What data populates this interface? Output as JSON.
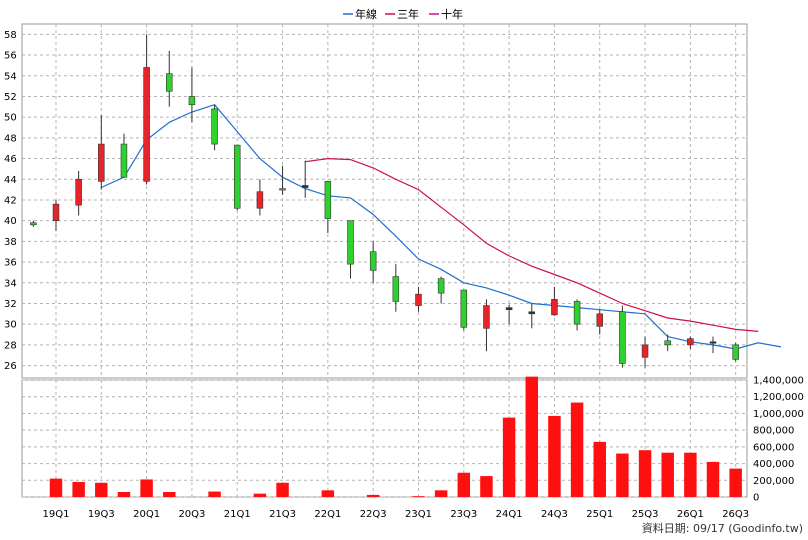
{
  "chart_data": {
    "type": "candlestick+bar",
    "legend": [
      {
        "label": "年線",
        "color": "#1f6fd1"
      },
      {
        "label": "三年",
        "color": "#cc1144"
      },
      {
        "label": "十年",
        "color": "#cc1188"
      }
    ],
    "price_axis": {
      "ticks": [
        "26",
        "28",
        "30",
        "32",
        "34",
        "36",
        "38",
        "40",
        "42",
        "44",
        "46",
        "48",
        "50",
        "52",
        "54",
        "56",
        "58"
      ],
      "ylim": [
        24.8,
        59
      ]
    },
    "volume_axis": {
      "ticks": [
        "0",
        "200,000",
        "400,000",
        "600,000",
        "800,000",
        "1,000,000",
        "1,200,000",
        "1,400,000"
      ],
      "ylim": [
        0,
        1400000
      ]
    },
    "x_tick_labels": [
      "19Q1",
      "19Q3",
      "20Q1",
      "20Q3",
      "21Q1",
      "21Q3",
      "22Q1",
      "22Q3",
      "23Q1",
      "23Q3",
      "24Q1",
      "24Q3",
      "25Q1",
      "25Q3",
      "26Q1",
      "26Q3"
    ],
    "candles": [
      {
        "o": 39.6,
        "h": 40.0,
        "l": 39.4,
        "c": 39.8,
        "color": "green"
      },
      {
        "o": 40.0,
        "h": 42.0,
        "l": 39.0,
        "c": 41.6,
        "color": "red"
      },
      {
        "o": 41.5,
        "h": 44.8,
        "l": 40.5,
        "c": 44.0,
        "color": "red"
      },
      {
        "o": 43.8,
        "h": 50.2,
        "l": 43.0,
        "c": 47.4,
        "color": "red"
      },
      {
        "o": 47.4,
        "h": 48.4,
        "l": 44.2,
        "c": 44.2,
        "color": "green"
      },
      {
        "o": 43.8,
        "h": 58.0,
        "l": 43.5,
        "c": 54.8,
        "color": "red"
      },
      {
        "o": 54.2,
        "h": 56.4,
        "l": 51.0,
        "c": 52.5,
        "color": "green"
      },
      {
        "o": 52.0,
        "h": 54.8,
        "l": 49.5,
        "c": 51.2,
        "color": "green"
      },
      {
        "o": 50.8,
        "h": 51.2,
        "l": 46.8,
        "c": 47.4,
        "color": "green"
      },
      {
        "o": 47.3,
        "h": 47.3,
        "l": 41.0,
        "c": 41.2,
        "color": "green"
      },
      {
        "o": 41.2,
        "h": 44.0,
        "l": 40.5,
        "c": 42.8,
        "color": "red"
      },
      {
        "o": 43.0,
        "h": 45.3,
        "l": 42.5,
        "c": 43.1,
        "color": "green"
      },
      {
        "o": 43.2,
        "h": 45.8,
        "l": 42.2,
        "c": 43.4,
        "color": "black"
      },
      {
        "o": 43.8,
        "h": 43.8,
        "l": 38.8,
        "c": 40.2,
        "color": "green"
      },
      {
        "o": 40.0,
        "h": 40.0,
        "l": 34.4,
        "c": 35.8,
        "color": "green"
      },
      {
        "o": 37.0,
        "h": 38.0,
        "l": 34.0,
        "c": 35.2,
        "color": "green"
      },
      {
        "o": 34.6,
        "h": 35.8,
        "l": 31.2,
        "c": 32.2,
        "color": "green"
      },
      {
        "o": 31.8,
        "h": 33.6,
        "l": 31.2,
        "c": 32.9,
        "color": "red"
      },
      {
        "o": 34.4,
        "h": 34.6,
        "l": 32.0,
        "c": 33.0,
        "color": "green"
      },
      {
        "o": 33.3,
        "h": 33.3,
        "l": 29.4,
        "c": 29.7,
        "color": "green"
      },
      {
        "o": 29.6,
        "h": 32.4,
        "l": 27.4,
        "c": 31.8,
        "color": "red"
      },
      {
        "o": 31.4,
        "h": 31.9,
        "l": 30.0,
        "c": 31.6,
        "color": "black"
      },
      {
        "o": 31.0,
        "h": 32.0,
        "l": 29.6,
        "c": 31.2,
        "color": "black"
      },
      {
        "o": 30.9,
        "h": 33.6,
        "l": 30.8,
        "c": 32.4,
        "color": "red"
      },
      {
        "o": 32.2,
        "h": 32.4,
        "l": 29.4,
        "c": 30.0,
        "color": "green"
      },
      {
        "o": 29.8,
        "h": 31.4,
        "l": 29.0,
        "c": 31.0,
        "color": "red"
      },
      {
        "o": 31.2,
        "h": 31.8,
        "l": 25.8,
        "c": 26.2,
        "color": "green"
      },
      {
        "o": 26.8,
        "h": 28.8,
        "l": 25.8,
        "c": 28.0,
        "color": "red"
      },
      {
        "o": 28.0,
        "h": 29.0,
        "l": 27.4,
        "c": 28.4,
        "color": "green"
      },
      {
        "o": 28.0,
        "h": 28.8,
        "l": 27.6,
        "c": 28.6,
        "color": "red"
      },
      {
        "o": 28.2,
        "h": 28.8,
        "l": 27.2,
        "c": 28.3,
        "color": "black"
      },
      {
        "o": 28.0,
        "h": 28.2,
        "l": 26.4,
        "c": 26.6,
        "color": "green"
      }
    ],
    "annual_line_start": 3,
    "annual_line": [
      43.2,
      44.2,
      47.8,
      49.5,
      50.5,
      51.2,
      48.6,
      46.0,
      44.2,
      43.1,
      42.4,
      42.2,
      40.6,
      38.5,
      36.3,
      35.3,
      34.0,
      33.5,
      32.8,
      32.0,
      31.8,
      31.6,
      31.4,
      31.2,
      31.0,
      28.8,
      28.3,
      28.0,
      27.6,
      28.2,
      27.8
    ],
    "three_year_line_start": 12,
    "three_year_line": [
      45.7,
      46.0,
      45.9,
      45.1,
      44.0,
      43.0,
      41.3,
      39.6,
      37.8,
      36.6,
      35.6,
      34.8,
      34.0,
      33.0,
      32.0,
      31.3,
      30.6,
      30.3,
      29.9,
      29.5,
      29.3
    ],
    "volumes": [
      0,
      220000,
      180000,
      170000,
      60000,
      210000,
      60000,
      0,
      65000,
      0,
      40000,
      170000,
      0,
      80000,
      0,
      25000,
      0,
      10000,
      80000,
      290000,
      250000,
      950000,
      1440000,
      970000,
      1130000,
      660000,
      520000,
      560000,
      530000,
      530000,
      420000,
      340000
    ]
  },
  "footer": {
    "text": "資料日期: 09/17 (Goodinfo.tw)"
  }
}
